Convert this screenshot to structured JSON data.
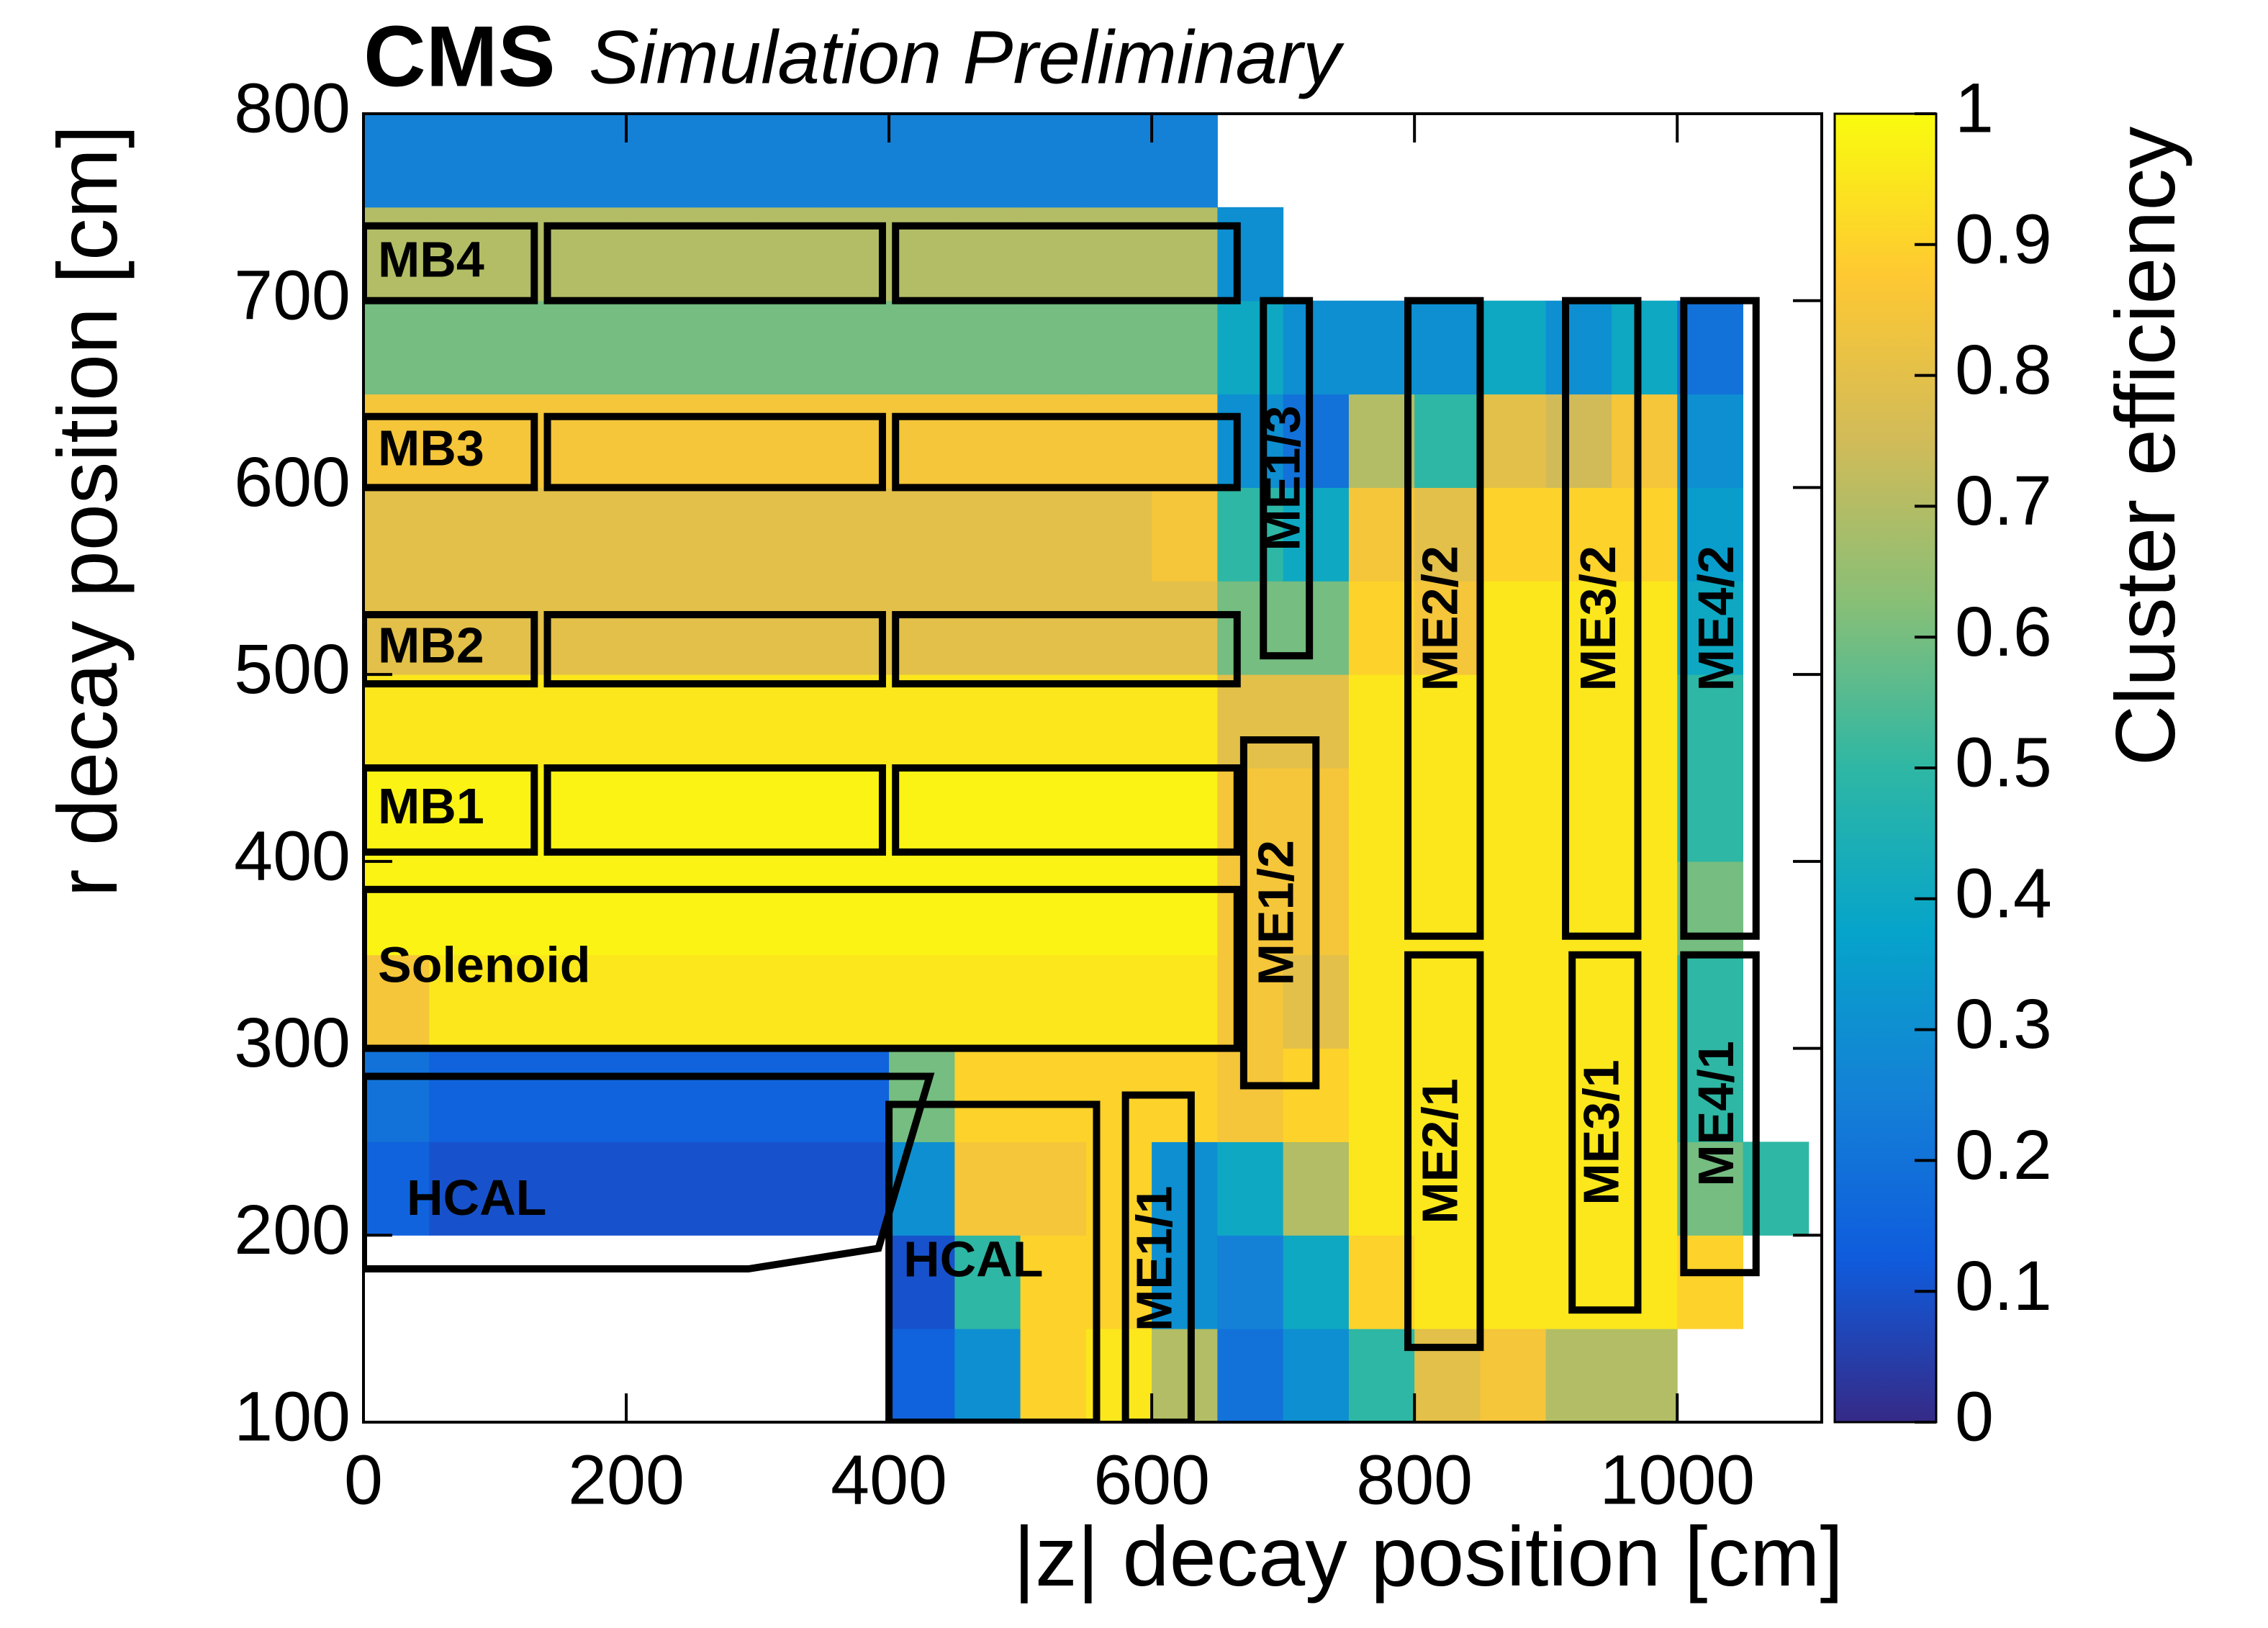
{
  "chart_data": {
    "type": "heatmap",
    "title": "CMS",
    "subtitle": "Simulation Preliminary",
    "x_label": "|z| decay position [cm]",
    "y_label": "r decay position [cm]",
    "colorbar_label": "Cluster efficiency",
    "xlim": [
      0,
      1110
    ],
    "ylim": [
      100,
      800
    ],
    "xticks": [
      0,
      200,
      400,
      600,
      800,
      1000
    ],
    "yticks": [
      100,
      200,
      300,
      400,
      500,
      600,
      700,
      800
    ],
    "zlim": [
      0,
      1
    ],
    "zticks": [
      0,
      0.1,
      0.2,
      0.3,
      0.4,
      0.5,
      0.6,
      0.7,
      0.8,
      0.9,
      1
    ],
    "palette": [
      "#352a87",
      "#0f5cdd",
      "#1481d6",
      "#06a4ca",
      "#2eb7a4",
      "#87bf77",
      "#d1bb59",
      "#fec832",
      "#f9fb0e"
    ],
    "xbins": [
      0,
      50,
      100,
      150,
      200,
      250,
      300,
      350,
      400,
      450,
      500,
      550,
      600,
      650,
      700,
      750,
      800,
      850,
      900,
      950,
      1000,
      1050,
      1100
    ],
    "ybins": [
      100,
      150,
      200,
      250,
      300,
      350,
      400,
      450,
      500,
      550,
      600,
      650,
      700,
      750,
      800
    ],
    "values": [
      [
        null,
        null,
        null,
        null,
        null,
        null,
        null,
        null,
        0.15,
        0.3,
        0.9,
        0.95,
        0.7,
        0.2,
        0.3,
        0.5,
        0.8,
        0.85,
        0.7,
        0.7,
        null,
        null
      ],
      [
        null,
        null,
        null,
        null,
        null,
        null,
        null,
        null,
        0.1,
        0.5,
        0.9,
        0.9,
        0.3,
        0.25,
        0.4,
        0.9,
        0.95,
        0.95,
        0.95,
        0.95,
        0.9,
        null
      ],
      [
        0.15,
        0.1,
        0.1,
        0.1,
        0.1,
        0.1,
        0.1,
        0.1,
        0.3,
        0.85,
        0.85,
        0.9,
        0.3,
        0.4,
        0.7,
        0.95,
        0.95,
        0.95,
        0.95,
        0.95,
        0.6,
        0.5
      ],
      [
        0.2,
        0.15,
        0.15,
        0.15,
        0.15,
        0.15,
        0.15,
        0.15,
        0.6,
        0.9,
        0.9,
        0.9,
        0.9,
        0.85,
        0.9,
        0.95,
        0.95,
        0.95,
        0.95,
        0.95,
        0.5,
        null
      ],
      [
        0.85,
        0.95,
        0.95,
        0.95,
        0.95,
        0.95,
        0.95,
        0.95,
        0.95,
        0.95,
        0.95,
        0.95,
        0.95,
        0.85,
        0.8,
        0.95,
        0.95,
        0.95,
        0.95,
        0.95,
        0.5,
        null
      ],
      [
        0.98,
        0.98,
        0.98,
        0.98,
        0.98,
        0.98,
        0.98,
        0.98,
        0.98,
        0.98,
        0.98,
        0.98,
        0.98,
        0.85,
        0.85,
        0.95,
        0.95,
        0.95,
        0.95,
        0.95,
        0.6,
        null
      ],
      [
        0.98,
        0.98,
        0.98,
        0.98,
        0.98,
        0.98,
        0.98,
        0.98,
        0.98,
        0.98,
        0.98,
        0.98,
        0.98,
        0.85,
        0.85,
        0.95,
        0.95,
        0.95,
        0.95,
        0.95,
        0.5,
        null
      ],
      [
        0.95,
        0.95,
        0.95,
        0.95,
        0.95,
        0.95,
        0.95,
        0.95,
        0.95,
        0.95,
        0.95,
        0.95,
        0.95,
        0.8,
        0.8,
        0.95,
        0.95,
        0.95,
        0.95,
        0.95,
        0.5,
        null
      ],
      [
        0.8,
        0.8,
        0.8,
        0.8,
        0.8,
        0.8,
        0.8,
        0.8,
        0.8,
        0.8,
        0.8,
        0.8,
        0.8,
        0.6,
        0.6,
        0.9,
        0.85,
        0.95,
        0.95,
        0.95,
        0.4,
        null
      ],
      [
        0.8,
        0.8,
        0.8,
        0.8,
        0.8,
        0.8,
        0.8,
        0.8,
        0.8,
        0.8,
        0.8,
        0.8,
        0.85,
        0.5,
        0.4,
        0.85,
        0.8,
        0.9,
        0.9,
        0.9,
        0.35,
        null
      ],
      [
        0.85,
        0.85,
        0.85,
        0.85,
        0.85,
        0.85,
        0.85,
        0.85,
        0.85,
        0.85,
        0.85,
        0.85,
        0.85,
        0.3,
        0.2,
        0.7,
        0.5,
        0.8,
        0.75,
        0.85,
        0.3,
        null
      ],
      [
        0.6,
        0.6,
        0.6,
        0.6,
        0.6,
        0.6,
        0.6,
        0.6,
        0.6,
        0.6,
        0.6,
        0.6,
        0.6,
        0.4,
        0.3,
        0.3,
        0.3,
        0.4,
        0.3,
        0.4,
        0.2,
        null
      ],
      [
        0.7,
        0.7,
        0.7,
        0.7,
        0.7,
        0.7,
        0.7,
        0.7,
        0.7,
        0.7,
        0.7,
        0.7,
        0.7,
        0.3,
        null,
        null,
        null,
        null,
        null,
        null,
        null,
        null
      ],
      [
        0.25,
        0.25,
        0.25,
        0.25,
        0.25,
        0.25,
        0.25,
        0.25,
        0.25,
        0.25,
        0.25,
        0.25,
        0.25,
        null,
        null,
        null,
        null,
        null,
        null,
        null,
        null,
        null
      ]
    ],
    "regions": [
      {
        "label": "MB4",
        "boxes": [
          [
            0,
            130,
            700,
            740
          ],
          [
            140,
            395,
            700,
            740
          ],
          [
            405,
            665,
            700,
            740
          ]
        ]
      },
      {
        "label": "MB3",
        "boxes": [
          [
            0,
            130,
            600,
            638
          ],
          [
            140,
            395,
            600,
            638
          ],
          [
            405,
            665,
            600,
            638
          ]
        ]
      },
      {
        "label": "MB2",
        "boxes": [
          [
            0,
            130,
            495,
            532
          ],
          [
            140,
            395,
            495,
            532
          ],
          [
            405,
            665,
            495,
            532
          ]
        ]
      },
      {
        "label": "MB1",
        "boxes": [
          [
            0,
            130,
            405,
            450
          ],
          [
            140,
            395,
            405,
            450
          ],
          [
            405,
            665,
            405,
            450
          ]
        ]
      },
      {
        "label": "Solenoid",
        "boxes": [
          [
            0,
            665,
            300,
            385
          ]
        ]
      },
      {
        "label": "HCAL",
        "polygon": [
          [
            0,
            285
          ],
          [
            431,
            285
          ],
          [
            392,
            193
          ],
          [
            293,
            182
          ],
          [
            0,
            182
          ]
        ]
      },
      {
        "label": "HCAL",
        "boxes": [
          [
            400,
            558,
            100,
            270
          ]
        ]
      },
      {
        "label": "ME1/1",
        "vertical": true,
        "boxes": [
          [
            580,
            630,
            100,
            275
          ]
        ]
      },
      {
        "label": "ME1/2",
        "vertical": true,
        "boxes": [
          [
            670,
            725,
            280,
            465
          ]
        ]
      },
      {
        "label": "ME1/3",
        "vertical": true,
        "boxes": [
          [
            685,
            720,
            510,
            700
          ]
        ]
      },
      {
        "label": "ME2/2",
        "vertical": true,
        "boxes": [
          [
            795,
            850,
            360,
            700
          ]
        ]
      },
      {
        "label": "ME2/1",
        "vertical": true,
        "boxes": [
          [
            795,
            850,
            140,
            350
          ]
        ]
      },
      {
        "label": "ME3/2",
        "vertical": true,
        "boxes": [
          [
            915,
            970,
            360,
            700
          ]
        ]
      },
      {
        "label": "ME3/1",
        "vertical": true,
        "boxes": [
          [
            920,
            970,
            160,
            350
          ]
        ]
      },
      {
        "label": "ME4/2",
        "vertical": true,
        "boxes": [
          [
            1005,
            1060,
            360,
            700
          ]
        ]
      },
      {
        "label": "ME4/1",
        "vertical": true,
        "boxes": [
          [
            1005,
            1060,
            180,
            350
          ]
        ]
      }
    ]
  }
}
